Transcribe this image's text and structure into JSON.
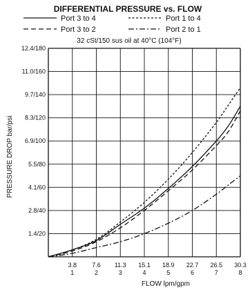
{
  "chart_data": {
    "type": "line",
    "title": "DIFFERENTIAL PRESSURE vs. FLOW",
    "subtitle": "32 cSt/150 sus oil at 40°C (104°F)",
    "xlabel": "FLOW lpm/gpm",
    "ylabel": "PRESSURE DROP bar/psi",
    "x_tick_labels": [
      {
        "primary": "3.8",
        "secondary": "1"
      },
      {
        "primary": "7.6",
        "secondary": "2"
      },
      {
        "primary": "11.3",
        "secondary": "3"
      },
      {
        "primary": "15.1",
        "secondary": "4"
      },
      {
        "primary": "18.9",
        "secondary": "5"
      },
      {
        "primary": "22.7",
        "secondary": "6"
      },
      {
        "primary": "26.5",
        "secondary": "7"
      },
      {
        "primary": "30.3",
        "secondary": "8"
      }
    ],
    "y_tick_labels": [
      "1.4/20",
      "2.8/40",
      "4.1/60",
      "5.5/80",
      "6.9/100",
      "8.3/120",
      "9.7/140",
      "11.0/160",
      "12.4/180"
    ],
    "xlim": [
      0,
      8
    ],
    "ylim": [
      0,
      180
    ],
    "x_unit": "gpm",
    "y_unit": "psi",
    "grid": true,
    "legend_position": "top",
    "series": [
      {
        "name": "Port 3 to 4",
        "style": "solid",
        "x": [
          0,
          1,
          2,
          3,
          4,
          5,
          6,
          7,
          7.5,
          8
        ],
        "y": [
          0,
          6,
          14,
          28,
          42,
          59,
          78,
          100,
          113,
          130
        ]
      },
      {
        "name": "Port 1 to 4",
        "style": "dotted",
        "x": [
          0,
          1,
          2,
          3,
          4,
          5,
          6,
          7,
          7.5,
          8
        ],
        "y": [
          0,
          6,
          15,
          30,
          47,
          67,
          90,
          116,
          131,
          146
        ]
      },
      {
        "name": "Port 3 to 2",
        "style": "dashed",
        "x": [
          0,
          1,
          2,
          3,
          4,
          5,
          6,
          7,
          7.5,
          8
        ],
        "y": [
          0,
          5,
          13,
          25,
          40,
          57,
          75,
          96,
          108,
          126
        ]
      },
      {
        "name": "Port 2 to 1",
        "style": "dashdot",
        "x": [
          0,
          1,
          2,
          3,
          4,
          5,
          6,
          7,
          7.5,
          8
        ],
        "y": [
          0,
          3,
          8,
          13,
          20,
          29,
          40,
          54,
          62,
          70
        ]
      }
    ]
  }
}
